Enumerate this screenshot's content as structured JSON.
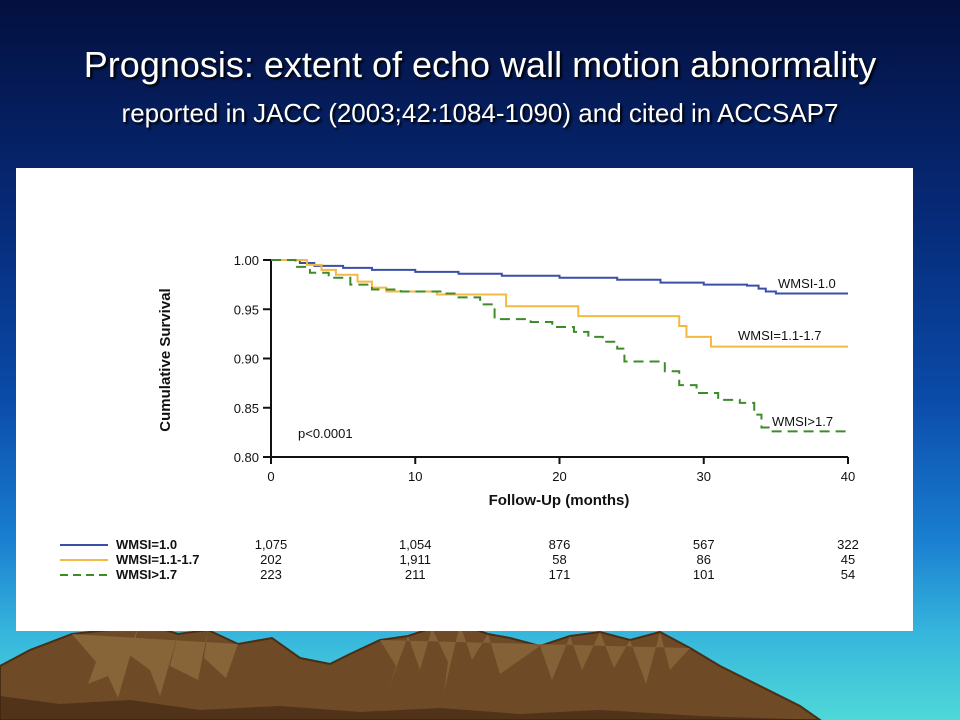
{
  "slide": {
    "title": "Prognosis: extent of echo wall motion abnormality",
    "subtitle": "reported in JACC (2003;42:1084-1090) and cited in ACCSAP7"
  },
  "chart_data": {
    "type": "line",
    "xlabel": "Follow-Up (months)",
    "ylabel": "Cumulative Survival",
    "xlim": [
      0,
      40
    ],
    "ylim": [
      0.8,
      1.0
    ],
    "x_ticks": [
      "0",
      "10",
      "20",
      "30",
      "40"
    ],
    "y_ticks": [
      "1.00",
      "0.95",
      "0.90",
      "0.85",
      "0.80"
    ],
    "annotation": "p<0.0001",
    "series": [
      {
        "name": "WMSI=1.0",
        "curve_label": "WMSI-1.0",
        "color": "#3a4fa8",
        "style": "solid",
        "points": [
          [
            0,
            1.0
          ],
          [
            2,
            0.997
          ],
          [
            3,
            0.994
          ],
          [
            5,
            0.992
          ],
          [
            7,
            0.99
          ],
          [
            10,
            0.988
          ],
          [
            13,
            0.986
          ],
          [
            16,
            0.984
          ],
          [
            20,
            0.982
          ],
          [
            24,
            0.98
          ],
          [
            27,
            0.977
          ],
          [
            30,
            0.975
          ],
          [
            33,
            0.974
          ],
          [
            33.8,
            0.971
          ],
          [
            34.3,
            0.968
          ],
          [
            35,
            0.966
          ],
          [
            40,
            0.966
          ]
        ]
      },
      {
        "name": "WMSI=1.1-1.7",
        "curve_label": "WMSI=1.1-1.7",
        "color": "#f4b942",
        "style": "solid",
        "points": [
          [
            0,
            1.0
          ],
          [
            2.5,
            0.995
          ],
          [
            3.5,
            0.99
          ],
          [
            4.5,
            0.985
          ],
          [
            6,
            0.978
          ],
          [
            7,
            0.972
          ],
          [
            8,
            0.968
          ],
          [
            11,
            0.968
          ],
          [
            11.5,
            0.965
          ],
          [
            16,
            0.965
          ],
          [
            16.3,
            0.953
          ],
          [
            21,
            0.953
          ],
          [
            21.3,
            0.943
          ],
          [
            28,
            0.943
          ],
          [
            28.3,
            0.933
          ],
          [
            28.8,
            0.922
          ],
          [
            30.3,
            0.922
          ],
          [
            30.5,
            0.912
          ],
          [
            40,
            0.912
          ]
        ]
      },
      {
        "name": "WMSI>1.7",
        "curve_label": "WMSI>1.7",
        "color": "#3c8c2a",
        "style": "dashed",
        "points": [
          [
            0,
            1.0
          ],
          [
            1.7,
            0.993
          ],
          [
            2.7,
            0.987
          ],
          [
            4,
            0.982
          ],
          [
            5.5,
            0.975
          ],
          [
            7,
            0.97
          ],
          [
            9,
            0.968
          ],
          [
            12,
            0.966
          ],
          [
            13,
            0.962
          ],
          [
            14.5,
            0.955
          ],
          [
            15.5,
            0.94
          ],
          [
            18,
            0.937
          ],
          [
            19.5,
            0.932
          ],
          [
            21,
            0.927
          ],
          [
            22,
            0.922
          ],
          [
            23,
            0.917
          ],
          [
            24,
            0.91
          ],
          [
            24.5,
            0.897
          ],
          [
            27,
            0.897
          ],
          [
            27.3,
            0.887
          ],
          [
            28.3,
            0.873
          ],
          [
            29.5,
            0.865
          ],
          [
            31,
            0.858
          ],
          [
            32.5,
            0.855
          ],
          [
            33.5,
            0.843
          ],
          [
            34,
            0.83
          ],
          [
            34.5,
            0.826
          ],
          [
            40,
            0.826
          ]
        ]
      }
    ],
    "risk_table": {
      "rows": [
        {
          "name": "WMSI=1.0",
          "values": [
            "1,075",
            "1,054",
            "876",
            "567",
            "322"
          ]
        },
        {
          "name": "WMSI=1.1-1.7",
          "values": [
            "202",
            "1,911",
            "58",
            "86",
            "45"
          ]
        },
        {
          "name": "WMSI>1.7",
          "values": [
            "223",
            "211",
            "171",
            "101",
            "54"
          ]
        }
      ]
    }
  }
}
